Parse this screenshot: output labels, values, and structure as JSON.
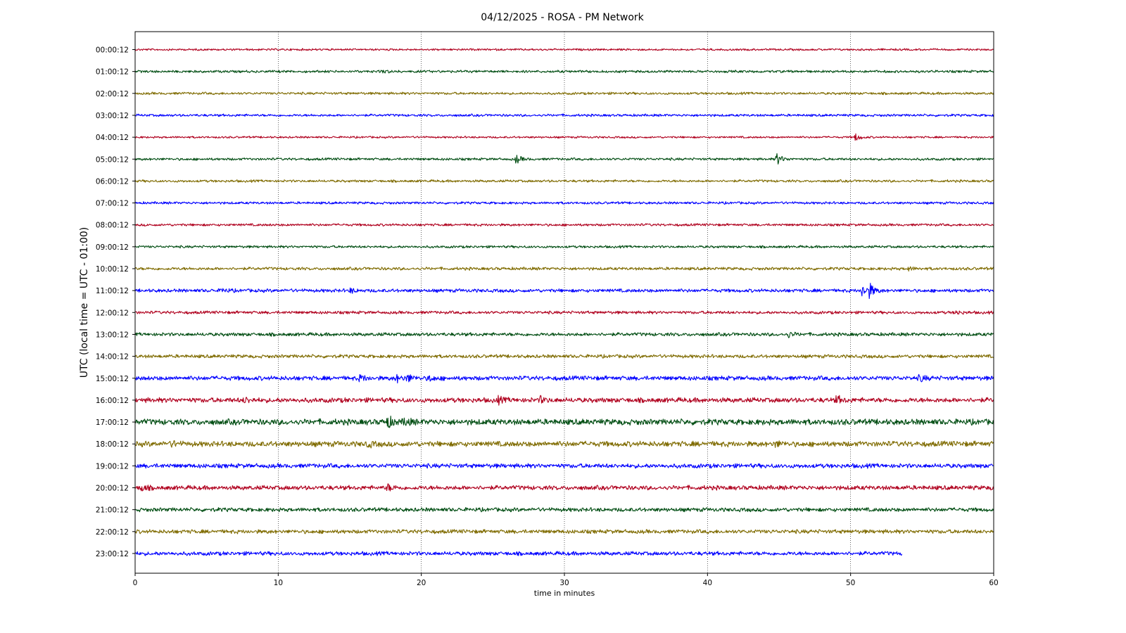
{
  "chart_data": {
    "type": "line",
    "title": "04/12/2025 - ROSA - PM Network",
    "xlabel": "time in minutes",
    "ylabel": "UTC (local time = UTC - 01:00)",
    "xlim": [
      0,
      60
    ],
    "xticks": [
      0,
      10,
      20,
      30,
      40,
      50,
      60
    ],
    "grid": "vertical dotted at x ticks",
    "trace_colors": [
      "#b0001e",
      "#004d12",
      "#7f6b00",
      "#0000ff"
    ],
    "series": [
      {
        "label": "00:00:12",
        "end_minute": 60,
        "noise_level": 0.2,
        "events": []
      },
      {
        "label": "01:00:12",
        "end_minute": 60,
        "noise_level": 0.25,
        "events": [
          {
            "t": 17.3,
            "amp": 0.3
          }
        ]
      },
      {
        "label": "02:00:12",
        "end_minute": 60,
        "noise_level": 0.25,
        "events": []
      },
      {
        "label": "03:00:12",
        "end_minute": 60,
        "noise_level": 0.25,
        "events": []
      },
      {
        "label": "04:00:12",
        "end_minute": 60,
        "noise_level": 0.2,
        "events": [
          {
            "t": 50.3,
            "amp": 0.8
          }
        ]
      },
      {
        "label": "05:00:12",
        "end_minute": 60,
        "noise_level": 0.25,
        "events": [
          {
            "t": 26.6,
            "amp": 0.9
          },
          {
            "t": 44.8,
            "amp": 1.3
          }
        ]
      },
      {
        "label": "06:00:12",
        "end_minute": 60,
        "noise_level": 0.25,
        "events": []
      },
      {
        "label": "07:00:12",
        "end_minute": 60,
        "noise_level": 0.25,
        "events": []
      },
      {
        "label": "08:00:12",
        "end_minute": 60,
        "noise_level": 0.25,
        "events": []
      },
      {
        "label": "09:00:12",
        "end_minute": 60,
        "noise_level": 0.25,
        "events": []
      },
      {
        "label": "10:00:12",
        "end_minute": 60,
        "noise_level": 0.3,
        "events": [
          {
            "t": 54.0,
            "amp": 0.4
          }
        ]
      },
      {
        "label": "11:00:12",
        "end_minute": 60,
        "noise_level": 0.35,
        "events": [
          {
            "t": 6.0,
            "amp": 0.5
          },
          {
            "t": 15.0,
            "amp": 0.5
          },
          {
            "t": 50.8,
            "amp": 1.3
          },
          {
            "t": 51.3,
            "amp": 1.3
          }
        ]
      },
      {
        "label": "12:00:12",
        "end_minute": 60,
        "noise_level": 0.3,
        "events": [
          {
            "t": 57.3,
            "amp": 0.5
          }
        ]
      },
      {
        "label": "13:00:12",
        "end_minute": 60,
        "noise_level": 0.35,
        "events": [
          {
            "t": 45.6,
            "amp": 0.6
          }
        ]
      },
      {
        "label": "14:00:12",
        "end_minute": 60,
        "noise_level": 0.35,
        "events": []
      },
      {
        "label": "15:00:12",
        "end_minute": 60,
        "noise_level": 0.45,
        "events": [
          {
            "t": 15.7,
            "amp": 0.7
          },
          {
            "t": 18.2,
            "amp": 0.8
          },
          {
            "t": 19.0,
            "amp": 0.8
          },
          {
            "t": 20.5,
            "amp": 0.6
          },
          {
            "t": 54.8,
            "amp": 0.7
          }
        ]
      },
      {
        "label": "16:00:12",
        "end_minute": 60,
        "noise_level": 0.5,
        "events": [
          {
            "t": 7.6,
            "amp": 0.6
          },
          {
            "t": 25.3,
            "amp": 0.7
          },
          {
            "t": 28.3,
            "amp": 0.6
          },
          {
            "t": 49.0,
            "amp": 0.8
          }
        ]
      },
      {
        "label": "17:00:12",
        "end_minute": 60,
        "noise_level": 0.6,
        "events": [
          {
            "t": 17.6,
            "amp": 1.3
          },
          {
            "t": 18.8,
            "amp": 0.8
          }
        ]
      },
      {
        "label": "18:00:12",
        "end_minute": 60,
        "noise_level": 0.55,
        "events": [
          {
            "t": 2.5,
            "amp": 0.5
          },
          {
            "t": 16.2,
            "amp": 0.6
          },
          {
            "t": 44.7,
            "amp": 0.6
          }
        ]
      },
      {
        "label": "19:00:12",
        "end_minute": 60,
        "noise_level": 0.45,
        "events": []
      },
      {
        "label": "20:00:12",
        "end_minute": 60,
        "noise_level": 0.45,
        "events": [
          {
            "t": 0.4,
            "amp": 0.7
          },
          {
            "t": 17.6,
            "amp": 0.7
          }
        ]
      },
      {
        "label": "21:00:12",
        "end_minute": 60,
        "noise_level": 0.4,
        "events": []
      },
      {
        "label": "22:00:12",
        "end_minute": 60,
        "noise_level": 0.4,
        "events": []
      },
      {
        "label": "23:00:12",
        "end_minute": 53.6,
        "noise_level": 0.4,
        "events": []
      }
    ]
  }
}
